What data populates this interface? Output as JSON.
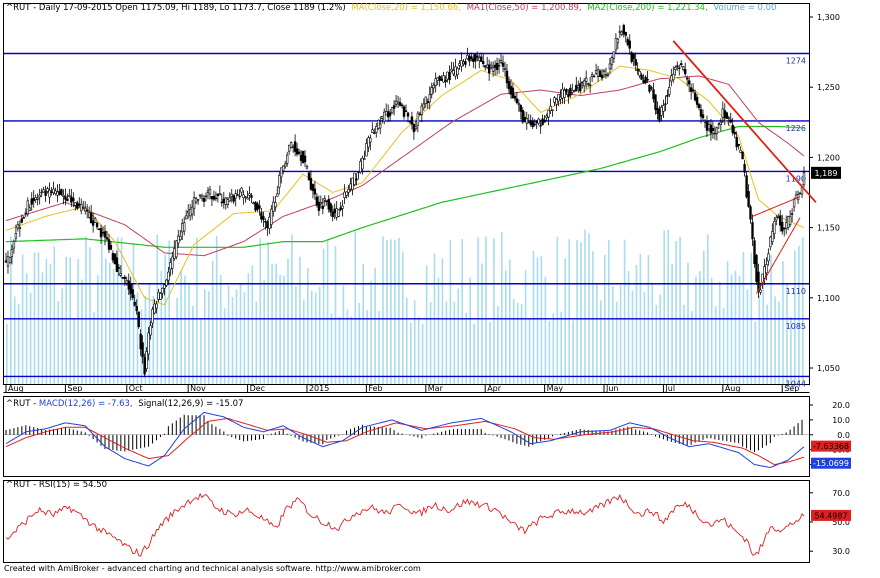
{
  "header": {
    "main": {
      "prefix": "^RUT - Daily 17-09-2015 Open 1175.09, Hi 1189, Lo 1173.7, Close 1189 (1.2%)",
      "ma": "MA(Close,20) = 1,150.66,",
      "ma1": "MA1(Close,50) = 1,200.89,",
      "ma2": "MA2(Close,200) = 1,221.34,",
      "volume": "Volume = 0.00"
    },
    "macd": {
      "prefix": "^RUT - ",
      "macd": "MACD(12,26) = -7.63,",
      "signal": "Signal(12,26,9) = -15.07"
    },
    "rsi": {
      "prefix": "^RUT - ",
      "rsi": "RSI(15) = 54.50"
    }
  },
  "footer": "Created with AmiBroker - advanced charting and technical analysis software. http://www.amibroker.com",
  "colors": {
    "candle": "#000000",
    "ma20": "#e8c020",
    "ma50": "#c0405a",
    "ma200": "#20c020",
    "volume": "#a8dcee",
    "support_lines": "#0000cc",
    "trendline": "#e02010",
    "macd_line": "#2040e0",
    "signal_line": "#e02020",
    "rsi_line": "#e02020",
    "current_price_box": "#000000"
  },
  "chart_data": [
    {
      "type": "candlestick",
      "title": "^RUT - Daily 17-09-2015",
      "x_labels": [
        "Aug",
        "Sep",
        "Oct",
        "Nov",
        "Dec",
        "2015",
        "Feb",
        "Mar",
        "Apr",
        "May",
        "Jun",
        "Jul",
        "Aug",
        "Sep"
      ],
      "ylim": [
        1040,
        1300
      ],
      "y_ticks": [
        "1,300",
        "1,250",
        "1,200",
        "1,150",
        "1,100",
        "1,050"
      ],
      "horizontal_levels": [
        {
          "label": "1274",
          "value": 1274
        },
        {
          "label": "1226",
          "value": 1226
        },
        {
          "label": "1190",
          "value": 1190
        },
        {
          "label": "1110",
          "value": 1110
        },
        {
          "label": "1085",
          "value": 1085
        },
        {
          "label": "1044",
          "value": 1044
        }
      ],
      "current_price": {
        "label": "1,189",
        "value": 1189
      },
      "close_anchors": [
        [
          0,
          1122
        ],
        [
          5,
          1148
        ],
        [
          12,
          1168
        ],
        [
          20,
          1174
        ],
        [
          28,
          1175
        ],
        [
          36,
          1166
        ],
        [
          44,
          1155
        ],
        [
          52,
          1138
        ],
        [
          58,
          1115
        ],
        [
          62,
          1108
        ],
        [
          66,
          1088
        ],
        [
          68,
          1066
        ],
        [
          70,
          1048
        ],
        [
          72,
          1075
        ],
        [
          75,
          1095
        ],
        [
          80,
          1110
        ],
        [
          85,
          1132
        ],
        [
          90,
          1155
        ],
        [
          96,
          1170
        ],
        [
          104,
          1174
        ],
        [
          112,
          1168
        ],
        [
          118,
          1175
        ],
        [
          124,
          1170
        ],
        [
          128,
          1162
        ],
        [
          132,
          1148
        ],
        [
          136,
          1172
        ],
        [
          140,
          1195
        ],
        [
          144,
          1210
        ],
        [
          150,
          1200
        ],
        [
          154,
          1180
        ],
        [
          158,
          1165
        ],
        [
          162,
          1170
        ],
        [
          166,
          1158
        ],
        [
          172,
          1175
        ],
        [
          178,
          1190
        ],
        [
          184,
          1215
        ],
        [
          190,
          1228
        ],
        [
          198,
          1238
        ],
        [
          206,
          1222
        ],
        [
          212,
          1240
        ],
        [
          218,
          1255
        ],
        [
          226,
          1260
        ],
        [
          232,
          1270
        ],
        [
          238,
          1272
        ],
        [
          244,
          1262
        ],
        [
          250,
          1268
        ],
        [
          256,
          1245
        ],
        [
          262,
          1225
        ],
        [
          268,
          1222
        ],
        [
          274,
          1232
        ],
        [
          280,
          1245
        ],
        [
          286,
          1248
        ],
        [
          292,
          1252
        ],
        [
          298,
          1258
        ],
        [
          304,
          1262
        ],
        [
          308,
          1284
        ],
        [
          311,
          1292
        ],
        [
          314,
          1282
        ],
        [
          318,
          1262
        ],
        [
          322,
          1255
        ],
        [
          326,
          1248
        ],
        [
          330,
          1228
        ],
        [
          334,
          1246
        ],
        [
          338,
          1268
        ],
        [
          342,
          1262
        ],
        [
          346,
          1248
        ],
        [
          350,
          1232
        ],
        [
          354,
          1222
        ],
        [
          358,
          1218
        ],
        [
          362,
          1232
        ],
        [
          366,
          1222
        ],
        [
          370,
          1205
        ],
        [
          372,
          1198
        ],
        [
          374,
          1175
        ],
        [
          376,
          1152
        ],
        [
          378,
          1128
        ],
        [
          380,
          1103
        ],
        [
          383,
          1120
        ],
        [
          386,
          1142
        ],
        [
          389,
          1160
        ],
        [
          392,
          1148
        ],
        [
          395,
          1155
        ],
        [
          398,
          1168
        ],
        [
          401,
          1175
        ],
        [
          403,
          1189
        ]
      ],
      "ma20_anchors": [
        [
          0,
          1148
        ],
        [
          20,
          1158
        ],
        [
          40,
          1165
        ],
        [
          55,
          1140
        ],
        [
          70,
          1100
        ],
        [
          80,
          1095
        ],
        [
          95,
          1138
        ],
        [
          115,
          1160
        ],
        [
          135,
          1162
        ],
        [
          150,
          1188
        ],
        [
          165,
          1175
        ],
        [
          180,
          1182
        ],
        [
          200,
          1218
        ],
        [
          220,
          1244
        ],
        [
          240,
          1262
        ],
        [
          255,
          1255
        ],
        [
          270,
          1232
        ],
        [
          290,
          1245
        ],
        [
          310,
          1265
        ],
        [
          325,
          1262
        ],
        [
          340,
          1256
        ],
        [
          355,
          1240
        ],
        [
          370,
          1215
        ],
        [
          380,
          1170
        ],
        [
          390,
          1158
        ],
        [
          403,
          1150
        ]
      ],
      "ma50_anchors": [
        [
          0,
          1155
        ],
        [
          30,
          1168
        ],
        [
          60,
          1152
        ],
        [
          80,
          1132
        ],
        [
          100,
          1130
        ],
        [
          120,
          1140
        ],
        [
          140,
          1158
        ],
        [
          160,
          1168
        ],
        [
          180,
          1180
        ],
        [
          200,
          1200
        ],
        [
          225,
          1225
        ],
        [
          250,
          1245
        ],
        [
          270,
          1248
        ],
        [
          290,
          1244
        ],
        [
          310,
          1248
        ],
        [
          330,
          1256
        ],
        [
          350,
          1258
        ],
        [
          365,
          1252
        ],
        [
          380,
          1225
        ],
        [
          395,
          1210
        ],
        [
          403,
          1201
        ]
      ],
      "ma200_anchors": [
        [
          0,
          1140
        ],
        [
          40,
          1142
        ],
        [
          80,
          1136
        ],
        [
          120,
          1136
        ],
        [
          140,
          1140
        ],
        [
          160,
          1140
        ],
        [
          180,
          1150
        ],
        [
          220,
          1168
        ],
        [
          260,
          1180
        ],
        [
          300,
          1192
        ],
        [
          330,
          1204
        ],
        [
          350,
          1214
        ],
        [
          370,
          1222
        ],
        [
          390,
          1222
        ],
        [
          403,
          1221
        ]
      ],
      "trendlines": [
        {
          "name": "downtrend",
          "from": [
            337,
            1283
          ],
          "to": [
            409,
            1168
          ]
        },
        {
          "name": "triangle-top",
          "from": [
            377,
            1158
          ],
          "to": [
            401,
            1172
          ]
        },
        {
          "name": "triangle-bottom",
          "from": [
            379,
            1103
          ],
          "to": [
            401,
            1157
          ]
        }
      ]
    },
    {
      "type": "line",
      "title": "MACD(12,26)",
      "ylim": [
        -25,
        22
      ],
      "y_ticks": [
        "20.0",
        "10.0",
        "0.0",
        "-10.0",
        "-20.0"
      ],
      "value_labels": {
        "macd": "-7.63368",
        "signal": "-15.0699"
      },
      "macd_anchors": [
        [
          0,
          -6
        ],
        [
          10,
          2
        ],
        [
          20,
          4
        ],
        [
          30,
          8
        ],
        [
          40,
          6
        ],
        [
          50,
          -8
        ],
        [
          60,
          -16
        ],
        [
          72,
          -21
        ],
        [
          80,
          -14
        ],
        [
          90,
          4
        ],
        [
          100,
          15
        ],
        [
          110,
          12
        ],
        [
          120,
          5
        ],
        [
          130,
          2
        ],
        [
          140,
          6
        ],
        [
          150,
          -2
        ],
        [
          160,
          -8
        ],
        [
          170,
          -4
        ],
        [
          180,
          5
        ],
        [
          195,
          10
        ],
        [
          210,
          3
        ],
        [
          225,
          8
        ],
        [
          240,
          11
        ],
        [
          255,
          2
        ],
        [
          265,
          -6
        ],
        [
          275,
          -4
        ],
        [
          290,
          2
        ],
        [
          305,
          3
        ],
        [
          315,
          8
        ],
        [
          325,
          5
        ],
        [
          335,
          -2
        ],
        [
          345,
          -8
        ],
        [
          355,
          -6
        ],
        [
          370,
          -12
        ],
        [
          378,
          -20
        ],
        [
          386,
          -22
        ],
        [
          395,
          -17
        ],
        [
          403,
          -8
        ]
      ],
      "signal_anchors": [
        [
          0,
          -8
        ],
        [
          10,
          -2
        ],
        [
          20,
          2
        ],
        [
          30,
          5
        ],
        [
          40,
          5
        ],
        [
          50,
          -2
        ],
        [
          60,
          -9
        ],
        [
          72,
          -16
        ],
        [
          82,
          -14
        ],
        [
          92,
          -2
        ],
        [
          102,
          9
        ],
        [
          112,
          11
        ],
        [
          122,
          7
        ],
        [
          132,
          3
        ],
        [
          142,
          4
        ],
        [
          152,
          0
        ],
        [
          162,
          -5
        ],
        [
          172,
          -4
        ],
        [
          182,
          2
        ],
        [
          197,
          8
        ],
        [
          212,
          4
        ],
        [
          227,
          6
        ],
        [
          242,
          9
        ],
        [
          257,
          4
        ],
        [
          267,
          -2
        ],
        [
          277,
          -3
        ],
        [
          292,
          0
        ],
        [
          307,
          2
        ],
        [
          317,
          5
        ],
        [
          327,
          4
        ],
        [
          337,
          0
        ],
        [
          347,
          -4
        ],
        [
          357,
          -5
        ],
        [
          372,
          -9
        ],
        [
          380,
          -14
        ],
        [
          388,
          -20
        ],
        [
          396,
          -18
        ],
        [
          403,
          -15
        ]
      ]
    },
    {
      "type": "line",
      "title": "RSI(15)",
      "ylim": [
        24,
        76
      ],
      "y_ticks": [
        "70.0",
        "50.0",
        "30.0"
      ],
      "value_label": "54.4987",
      "rsi_anchors": [
        [
          0,
          38
        ],
        [
          8,
          48
        ],
        [
          16,
          58
        ],
        [
          24,
          55
        ],
        [
          32,
          60
        ],
        [
          40,
          52
        ],
        [
          48,
          44
        ],
        [
          56,
          38
        ],
        [
          62,
          32
        ],
        [
          68,
          28
        ],
        [
          72,
          35
        ],
        [
          78,
          48
        ],
        [
          86,
          58
        ],
        [
          94,
          66
        ],
        [
          100,
          68
        ],
        [
          106,
          60
        ],
        [
          114,
          55
        ],
        [
          122,
          58
        ],
        [
          130,
          52
        ],
        [
          136,
          45
        ],
        [
          142,
          60
        ],
        [
          148,
          65
        ],
        [
          154,
          55
        ],
        [
          160,
          50
        ],
        [
          168,
          46
        ],
        [
          176,
          56
        ],
        [
          184,
          60
        ],
        [
          192,
          56
        ],
        [
          200,
          62
        ],
        [
          208,
          55
        ],
        [
          216,
          62
        ],
        [
          224,
          58
        ],
        [
          232,
          64
        ],
        [
          240,
          62
        ],
        [
          248,
          58
        ],
        [
          256,
          48
        ],
        [
          262,
          44
        ],
        [
          270,
          52
        ],
        [
          278,
          56
        ],
        [
          286,
          58
        ],
        [
          294,
          56
        ],
        [
          302,
          62
        ],
        [
          310,
          68
        ],
        [
          314,
          62
        ],
        [
          320,
          55
        ],
        [
          326,
          58
        ],
        [
          332,
          50
        ],
        [
          338,
          60
        ],
        [
          344,
          62
        ],
        [
          350,
          54
        ],
        [
          356,
          48
        ],
        [
          362,
          52
        ],
        [
          368,
          44
        ],
        [
          374,
          38
        ],
        [
          378,
          26
        ],
        [
          382,
          34
        ],
        [
          386,
          48
        ],
        [
          392,
          44
        ],
        [
          398,
          50
        ],
        [
          403,
          54
        ]
      ]
    }
  ]
}
